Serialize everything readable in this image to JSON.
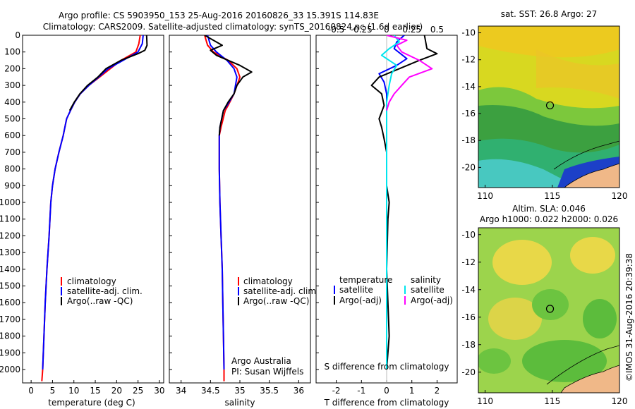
{
  "header": {
    "title_line1": "Argo profile: CS 5903950_153 25-Aug-2016 20160826_33 15.391S 114.83E",
    "title_line2": "Climatology: CARS2009. Satellite-adjusted climatology: synTS_20160824.nc (1.6d earlier)"
  },
  "colors": {
    "clim": "#ff0000",
    "sat": "#0000ff",
    "argo": "#000000",
    "sal_sat": "#00e5ee",
    "sal_argo": "#ff00ff"
  },
  "chart_data": [
    {
      "type": "line",
      "id": "temperature",
      "xlabel": "temperature (deg C)",
      "xlim": [
        -2,
        31
      ],
      "ylim": [
        2080,
        0
      ],
      "xticks": [
        0,
        5,
        10,
        15,
        20,
        25,
        30
      ],
      "yticks": [
        0,
        100,
        200,
        300,
        400,
        500,
        600,
        700,
        800,
        900,
        1000,
        1100,
        1200,
        1300,
        1400,
        1500,
        1600,
        1700,
        1800,
        1900,
        2000
      ],
      "legend": {
        "clim": "climatology",
        "sat": "satellite-adj. clim.",
        "argo": "Argo(..raw -QC)"
      },
      "series": [
        {
          "name": "climatology",
          "color_key": "clim",
          "points": [
            [
              25.5,
              0
            ],
            [
              25.2,
              50
            ],
            [
              24.5,
              100
            ],
            [
              21,
              150
            ],
            [
              18.5,
              200
            ],
            [
              16,
              250
            ],
            [
              13.5,
              300
            ],
            [
              11.5,
              350
            ],
            [
              10.2,
              400
            ],
            [
              9.2,
              450
            ],
            [
              8.3,
              500
            ],
            [
              7.5,
              600
            ],
            [
              6.5,
              700
            ],
            [
              5.6,
              800
            ],
            [
              5,
              900
            ],
            [
              4.6,
              1000
            ],
            [
              4.2,
              1200
            ],
            [
              3.7,
              1400
            ],
            [
              3.3,
              1600
            ],
            [
              3,
              1800
            ],
            [
              2.7,
              2000
            ],
            [
              2.5,
              2070
            ]
          ]
        },
        {
          "name": "satellite-adj. clim.",
          "color_key": "sat",
          "points": [
            [
              26.2,
              0
            ],
            [
              26,
              50
            ],
            [
              25,
              100
            ],
            [
              21.5,
              150
            ],
            [
              18,
              200
            ],
            [
              15.8,
              250
            ],
            [
              13.5,
              300
            ],
            [
              11.5,
              350
            ],
            [
              10.2,
              400
            ],
            [
              9.2,
              450
            ],
            [
              8.3,
              500
            ],
            [
              7.5,
              600
            ],
            [
              6.5,
              700
            ],
            [
              5.6,
              800
            ],
            [
              5,
              900
            ],
            [
              4.6,
              1000
            ],
            [
              4.2,
              1200
            ],
            [
              3.7,
              1400
            ],
            [
              3.3,
              1600
            ],
            [
              3,
              1800
            ],
            [
              2.7,
              2000
            ]
          ]
        },
        {
          "name": "Argo",
          "color_key": "argo",
          "points": [
            [
              27,
              0
            ],
            [
              27.1,
              60
            ],
            [
              26.6,
              90
            ],
            [
              25,
              110
            ],
            [
              21,
              150
            ],
            [
              17.5,
              200
            ],
            [
              15.6,
              250
            ],
            [
              13.2,
              300
            ],
            [
              11.4,
              350
            ],
            [
              10.1,
              400
            ],
            [
              9,
              450
            ]
          ]
        }
      ]
    },
    {
      "type": "line",
      "id": "salinity",
      "xlabel": "salinity",
      "xlim": [
        33.8,
        36.2
      ],
      "ylim": [
        2080,
        0
      ],
      "xticks": [
        34,
        34.5,
        35,
        35.5,
        36
      ],
      "legend": {
        "clim": "climatology",
        "sat": "satellite-adj. clim.",
        "argo": "Argo(..raw -QC)"
      },
      "note": [
        "Argo Australia",
        "PI: Susan Wijffels"
      ],
      "series": [
        {
          "name": "climatology",
          "color_key": "clim",
          "points": [
            [
              34.4,
              0
            ],
            [
              34.45,
              60
            ],
            [
              34.55,
              100
            ],
            [
              34.8,
              150
            ],
            [
              34.95,
              200
            ],
            [
              35,
              250
            ],
            [
              34.9,
              350
            ],
            [
              34.8,
              420
            ],
            [
              34.75,
              450
            ],
            [
              34.68,
              550
            ],
            [
              34.65,
              600
            ],
            [
              34.65,
              800
            ],
            [
              34.66,
              1000
            ],
            [
              34.68,
              1200
            ],
            [
              34.7,
              1400
            ],
            [
              34.71,
              1600
            ],
            [
              34.72,
              1800
            ],
            [
              34.73,
              2000
            ],
            [
              34.73,
              2070
            ]
          ]
        },
        {
          "name": "satellite-adj. clim.",
          "color_key": "sat",
          "points": [
            [
              34.45,
              0
            ],
            [
              34.5,
              60
            ],
            [
              34.6,
              100
            ],
            [
              34.78,
              150
            ],
            [
              34.9,
              200
            ],
            [
              34.95,
              250
            ],
            [
              34.9,
              350
            ],
            [
              34.78,
              420
            ],
            [
              34.72,
              450
            ],
            [
              34.66,
              550
            ],
            [
              34.65,
              600
            ],
            [
              34.65,
              800
            ],
            [
              34.66,
              1000
            ],
            [
              34.68,
              1200
            ],
            [
              34.7,
              1400
            ],
            [
              34.71,
              1600
            ],
            [
              34.72,
              1800
            ],
            [
              34.73,
              2000
            ]
          ]
        },
        {
          "name": "Argo",
          "color_key": "argo",
          "points": [
            [
              34.4,
              0
            ],
            [
              34.7,
              60
            ],
            [
              34.5,
              90
            ],
            [
              34.6,
              120
            ],
            [
              34.8,
              150
            ],
            [
              35,
              180
            ],
            [
              35.2,
              220
            ],
            [
              35.05,
              250
            ],
            [
              34.95,
              300
            ],
            [
              34.9,
              350
            ],
            [
              34.8,
              400
            ],
            [
              34.72,
              450
            ],
            [
              34.66,
              550
            ],
            [
              34.65,
              600
            ]
          ]
        }
      ]
    },
    {
      "type": "line",
      "id": "differences",
      "xlabel": "T difference from climatology",
      "xlabel_top": "S difference from climatology",
      "xlim": [
        -2.8,
        2.8
      ],
      "ylim": [
        2080,
        0
      ],
      "xticks": [
        -2,
        -1,
        0,
        1,
        2
      ],
      "xticks_s": [
        "-0.5",
        "-0.25",
        "0",
        "0.25",
        "0.5"
      ],
      "xticks_s_pos": [
        -2,
        -1,
        0,
        1,
        2
      ],
      "legend": {
        "temp_head": "temperature",
        "sal_head": "salinity",
        "temp_sat": "satellite",
        "temp_argo": "Argo(-adj)",
        "sal_sat": "satellite",
        "sal_argo": "Argo(-adj)"
      },
      "series": [
        {
          "name": "T satellite",
          "color_key": "sat",
          "points": [
            [
              0.7,
              0
            ],
            [
              0.4,
              40
            ],
            [
              0.3,
              80
            ],
            [
              0.8,
              140
            ],
            [
              0.4,
              180
            ],
            [
              -0.3,
              230
            ],
            [
              -0.1,
              280
            ],
            [
              0,
              350
            ],
            [
              0,
              500
            ],
            [
              0,
              800
            ],
            [
              0,
              1200
            ],
            [
              0,
              1600
            ],
            [
              0,
              2000
            ]
          ]
        },
        {
          "name": "T Argo",
          "color_key": "argo",
          "points": [
            [
              1.5,
              0
            ],
            [
              1.6,
              80
            ],
            [
              2,
              110
            ],
            [
              1.3,
              150
            ],
            [
              0.5,
              200
            ],
            [
              -0.3,
              250
            ],
            [
              -0.6,
              300
            ],
            [
              -0.2,
              350
            ],
            [
              -0.1,
              420
            ],
            [
              -0.3,
              500
            ],
            [
              -0.2,
              550
            ],
            [
              -0.1,
              620
            ],
            [
              0,
              700
            ],
            [
              0,
              900
            ],
            [
              0.1,
              1000
            ],
            [
              0.05,
              1100
            ],
            [
              0,
              1400
            ],
            [
              0.1,
              1800
            ],
            [
              0,
              2000
            ]
          ]
        },
        {
          "name": "S satellite",
          "color_key": "sal_sat",
          "points": [
            [
              0.3,
              0
            ],
            [
              0.5,
              40
            ],
            [
              0.1,
              80
            ],
            [
              -0.2,
              120
            ],
            [
              0.4,
              180
            ],
            [
              0.2,
              230
            ],
            [
              0.1,
              300
            ],
            [
              0,
              400
            ],
            [
              0,
              600
            ],
            [
              0,
              900
            ],
            [
              0,
              1300
            ],
            [
              0,
              2000
            ]
          ]
        },
        {
          "name": "S Argo",
          "color_key": "sal_argo",
          "points": [
            [
              0,
              0
            ],
            [
              0.8,
              30
            ],
            [
              0.4,
              60
            ],
            [
              0.6,
              100
            ],
            [
              1.3,
              150
            ],
            [
              1.8,
              200
            ],
            [
              0.9,
              250
            ],
            [
              0.6,
              300
            ],
            [
              0.3,
              350
            ],
            [
              0.1,
              400
            ],
            [
              0,
              450
            ]
          ]
        }
      ]
    },
    {
      "type": "heatmap",
      "id": "sst_map",
      "title": "sat. SST: 26.8 Argo: 27",
      "xlim": [
        109.5,
        120
      ],
      "ylim": [
        -21.5,
        -9.5
      ],
      "xticks": [
        110,
        115,
        120
      ],
      "yticks": [
        -10,
        -12,
        -14,
        -16,
        -18,
        -20
      ],
      "float_marker": [
        114.83,
        -15.391
      ]
    },
    {
      "type": "heatmap",
      "id": "sla_map",
      "title_line1": "Altim. SLA: 0.046",
      "title_line2": "Argo h1000: 0.022 h2000: 0.026",
      "xlim": [
        109.5,
        120
      ],
      "ylim": [
        -21.5,
        -9.5
      ],
      "xticks": [
        110,
        115,
        120
      ],
      "yticks": [
        -10,
        -12,
        -14,
        -16,
        -18,
        -20
      ],
      "float_marker": [
        114.83,
        -15.391
      ]
    }
  ],
  "footer_credit": "©IMOS 31-Aug-2016 20:39:38"
}
